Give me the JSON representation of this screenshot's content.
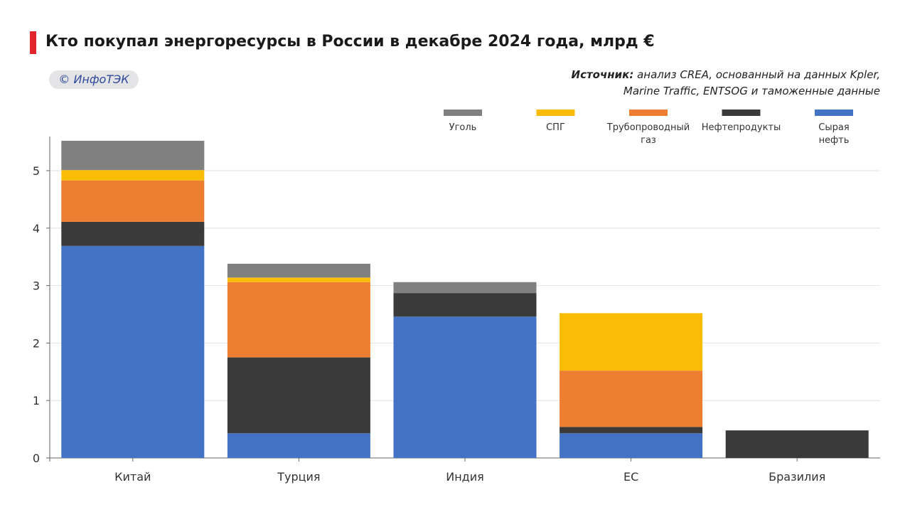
{
  "header": {
    "title": "Кто покупал энергоресурсы в России в декабре 2024 года, млрд €",
    "logo": "ИнфоТЭК",
    "source_label": "Источник:",
    "source_line1": " анализ CREA, основанный на данных Kpler,",
    "source_line2": "Marine Traffic, ENTSOG и таможенные данные"
  },
  "chart_data": {
    "type": "bar",
    "stacked": true,
    "title": "Кто покупал энергоресурсы в России в декабре 2024 года, млрд €",
    "xlabel": "",
    "ylabel": "млрд €",
    "ylim": [
      0,
      5.5
    ],
    "yticks": [
      0,
      1,
      2,
      3,
      4,
      5
    ],
    "grid": true,
    "legend_position": "top-right",
    "categories": [
      "Китай",
      "Турция",
      "Индия",
      "ЕС",
      "Бразилия"
    ],
    "series": [
      {
        "name": "Сырая нефть",
        "label_lines": [
          "Сырая",
          "нефть"
        ],
        "color": "#4472c4",
        "values": [
          3.69,
          0.43,
          2.46,
          0.43,
          0
        ]
      },
      {
        "name": "Нефтепродукты",
        "label_lines": [
          "Нефтепродукты"
        ],
        "color": "#3a3a3a",
        "values": [
          0.42,
          1.32,
          0.41,
          0.11,
          0.48
        ]
      },
      {
        "name": "Трубопроводный газ",
        "label_lines": [
          "Трубопроводный",
          "газ"
        ],
        "color": "#ed7d31",
        "values": [
          0.72,
          1.31,
          0,
          0.98,
          0
        ]
      },
      {
        "name": "СПГ",
        "label_lines": [
          "СПГ"
        ],
        "color": "#fbbc05",
        "values": [
          0.18,
          0.08,
          0,
          1.0,
          0
        ]
      },
      {
        "name": "Уголь",
        "label_lines": [
          "Уголь"
        ],
        "color": "#808080",
        "values": [
          0.51,
          0.24,
          0.19,
          0,
          0
        ]
      }
    ],
    "legend_order": [
      "Уголь",
      "СПГ",
      "Трубопроводный газ",
      "Нефтепродукты",
      "Сырая нефть"
    ]
  }
}
